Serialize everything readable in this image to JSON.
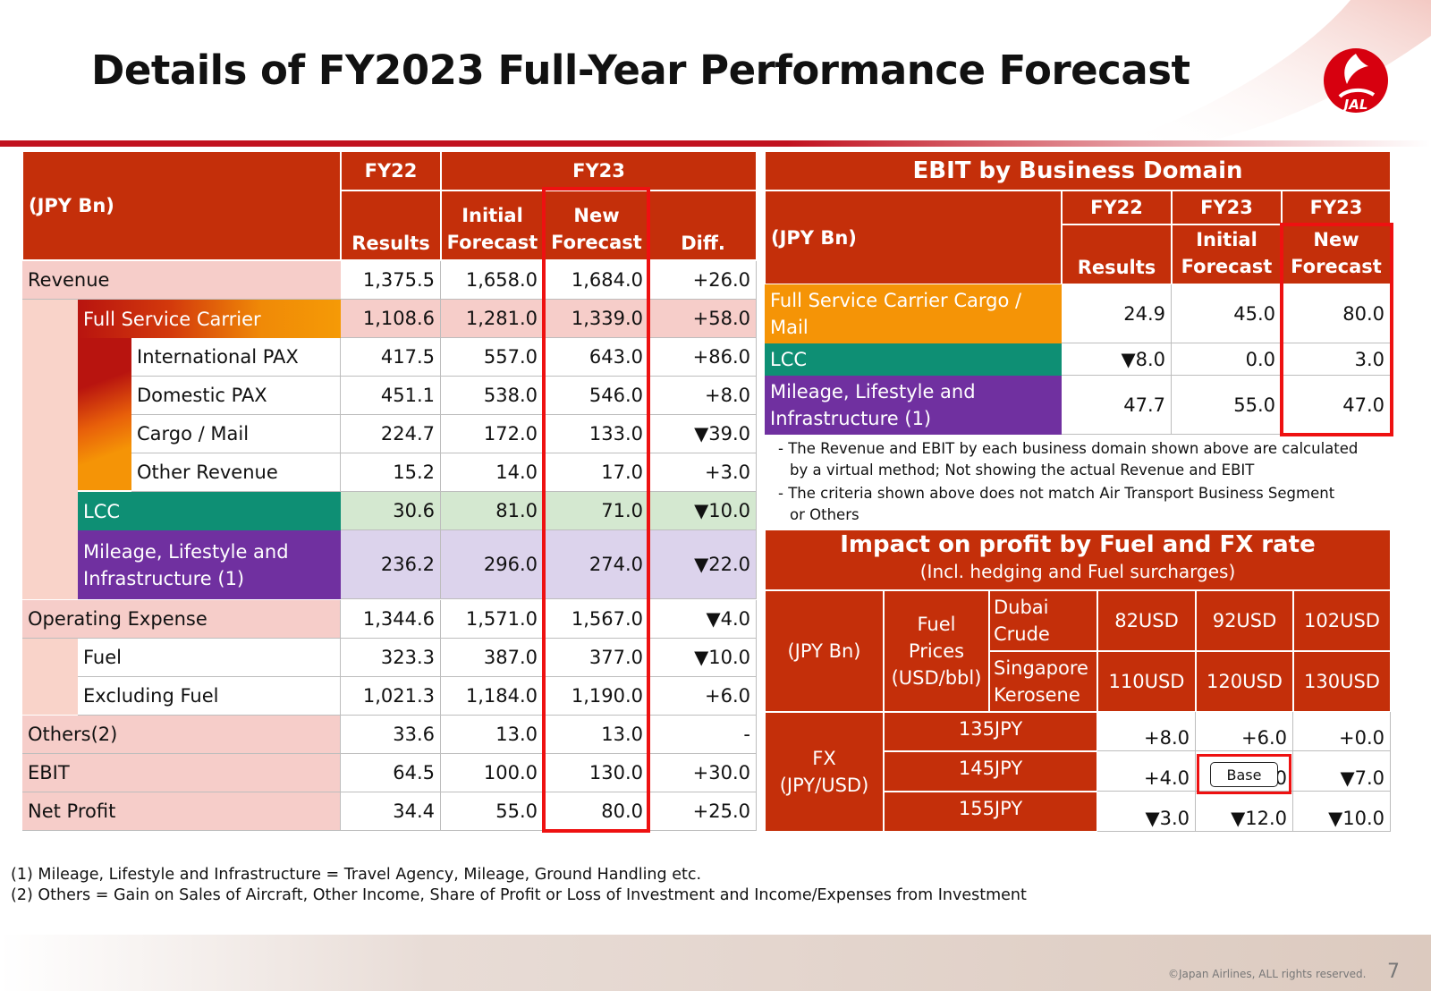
{
  "title": "Details of FY2023 Full-Year Performance Forecast",
  "left_table": {
    "unit": "(JPY Bn)",
    "headers": {
      "fy22": "FY22",
      "fy23": "FY23",
      "results": "Results",
      "initial_forecast": "Initial Forecast",
      "new_forecast": "New Forecast",
      "diff": "Diff."
    },
    "rows": [
      {
        "label": "Revenue",
        "results": "1,375.5",
        "initial": "1,658.0",
        "new": "1,684.0",
        "diff": "+26.0"
      },
      {
        "label": "Full Service Carrier",
        "results": "1,108.6",
        "initial": "1,281.0",
        "new": "1,339.0",
        "diff": "+58.0"
      },
      {
        "label": "International PAX",
        "results": "417.5",
        "initial": "557.0",
        "new": "643.0",
        "diff": "+86.0"
      },
      {
        "label": "Domestic PAX",
        "results": "451.1",
        "initial": "538.0",
        "new": "546.0",
        "diff": "+8.0"
      },
      {
        "label": "Cargo / Mail",
        "results": "224.7",
        "initial": "172.0",
        "new": "133.0",
        "diff": "▼39.0"
      },
      {
        "label": "Other Revenue",
        "results": "15.2",
        "initial": "14.0",
        "new": "17.0",
        "diff": "+3.0"
      },
      {
        "label": "LCC",
        "results": "30.6",
        "initial": "81.0",
        "new": "71.0",
        "diff": "▼10.0"
      },
      {
        "label": "Mileage, Lifestyle and Infrastructure (1)",
        "results": "236.2",
        "initial": "296.0",
        "new": "274.0",
        "diff": "▼22.0"
      },
      {
        "label": "Operating Expense",
        "results": "1,344.6",
        "initial": "1,571.0",
        "new": "1,567.0",
        "diff": "▼4.0"
      },
      {
        "label": "Fuel",
        "results": "323.3",
        "initial": "387.0",
        "new": "377.0",
        "diff": "▼10.0"
      },
      {
        "label": "Excluding Fuel",
        "results": "1,021.3",
        "initial": "1,184.0",
        "new": "1,190.0",
        "diff": "+6.0"
      },
      {
        "label": "Others(2)",
        "results": "33.6",
        "initial": "13.0",
        "new": "13.0",
        "diff": "-"
      },
      {
        "label": "EBIT",
        "results": "64.5",
        "initial": "100.0",
        "new": "130.0",
        "diff": "+30.0"
      },
      {
        "label": "Net Profit",
        "results": "34.4",
        "initial": "55.0",
        "new": "80.0",
        "diff": "+25.0"
      }
    ]
  },
  "ebit_table": {
    "title": "EBIT by Business Domain",
    "unit": "(JPY Bn)",
    "headers": {
      "fy22": "FY22",
      "fy23a": "FY23",
      "fy23b": "FY23",
      "results": "Results",
      "initial_forecast": "Initial Forecast",
      "new_forecast": "New Forecast"
    },
    "rows": [
      {
        "label": "Full Service Carrier Cargo / Mail",
        "results": "24.9",
        "initial": "45.0",
        "new": "80.0"
      },
      {
        "label": "LCC",
        "results": "▼8.0",
        "initial": "0.0",
        "new": "3.0"
      },
      {
        "label": "Mileage, Lifestyle and Infrastructure (1)",
        "results": "47.7",
        "initial": "55.0",
        "new": "47.0"
      }
    ],
    "notes": [
      "- The Revenue and EBIT by each business domain shown above are calculated",
      "by a virtual method; Not showing the actual Revenue and EBIT",
      "- The criteria shown above does not match Air Transport Business Segment",
      "or Others"
    ]
  },
  "impact_table": {
    "title": "Impact on profit by Fuel and FX rate",
    "subtitle": "(Incl. hedging and Fuel surcharges)",
    "unit": "(JPY Bn)",
    "fuel_label": "Fuel Prices (USD/bbl)",
    "dubai_label": "Dubai Crude",
    "singapore_label": "Singapore Kerosene",
    "dubai_prices": [
      "82USD",
      "92USD",
      "102USD"
    ],
    "kerosene_prices": [
      "110USD",
      "120USD",
      "130USD"
    ],
    "fx_label": "FX (JPY/USD)",
    "fx_rows": [
      {
        "rate": "135JPY",
        "values": [
          "+8.0",
          "+6.0",
          "+0.0"
        ]
      },
      {
        "rate": "145JPY",
        "values": [
          "+4.0",
          "+0.0",
          "▼7.0"
        ]
      },
      {
        "rate": "155JPY",
        "values": [
          "▼3.0",
          "▼12.0",
          "▼10.0"
        ]
      }
    ],
    "base_label": "Base"
  },
  "footnotes": [
    "(1) Mileage, Lifestyle and Infrastructure = Travel Agency, Mileage, Ground Handling etc.",
    "(2) Others = Gain on Sales of Aircraft, Other Income, Share of Profit or Loss of Investment and Income/Expenses from Investment"
  ],
  "logo_text": "JAL",
  "copyright": "©Japan Airlines, ALL rights reserved.",
  "page_number": "7",
  "colors": {
    "header": "#c42f0a",
    "fsc": "#f59406",
    "lcc": "#0e8f74",
    "mileage": "#7030a0",
    "highlight": "#ee1111"
  }
}
